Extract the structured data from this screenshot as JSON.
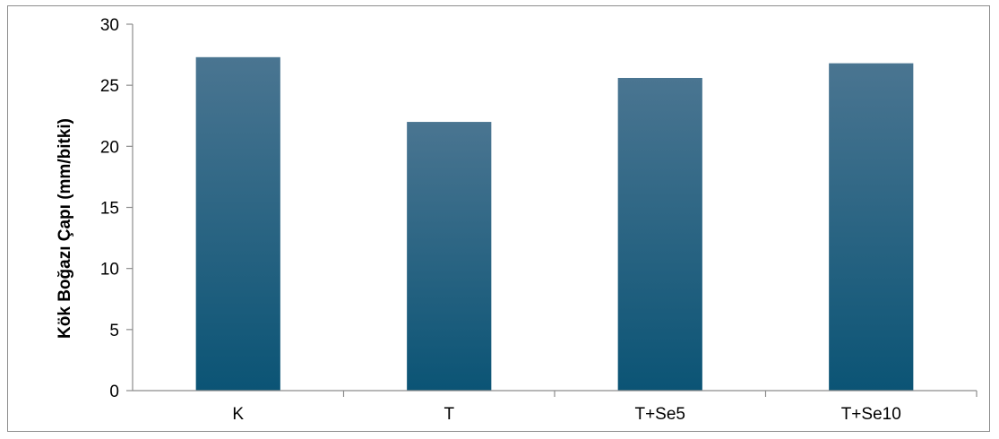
{
  "chart_data": {
    "type": "bar",
    "title": "",
    "xlabel": "",
    "ylabel": "Kök Boğazı Çapı (mm/bitki)",
    "categories": [
      "K",
      "T",
      "T+Se5",
      "T+Se10"
    ],
    "values": [
      27.3,
      22.0,
      25.6,
      26.8
    ],
    "ylim": [
      0,
      30
    ],
    "yticks": [
      0,
      5,
      10,
      15,
      20,
      25,
      30
    ],
    "ytick_labels": [
      "0",
      "5",
      "10",
      "15",
      "20",
      "25",
      "30"
    ],
    "grid": false,
    "legend": "none",
    "colors": {
      "bar_top": "#4a7591",
      "bar_bottom": "#0b5475",
      "axis": "#8c8c8c"
    }
  }
}
